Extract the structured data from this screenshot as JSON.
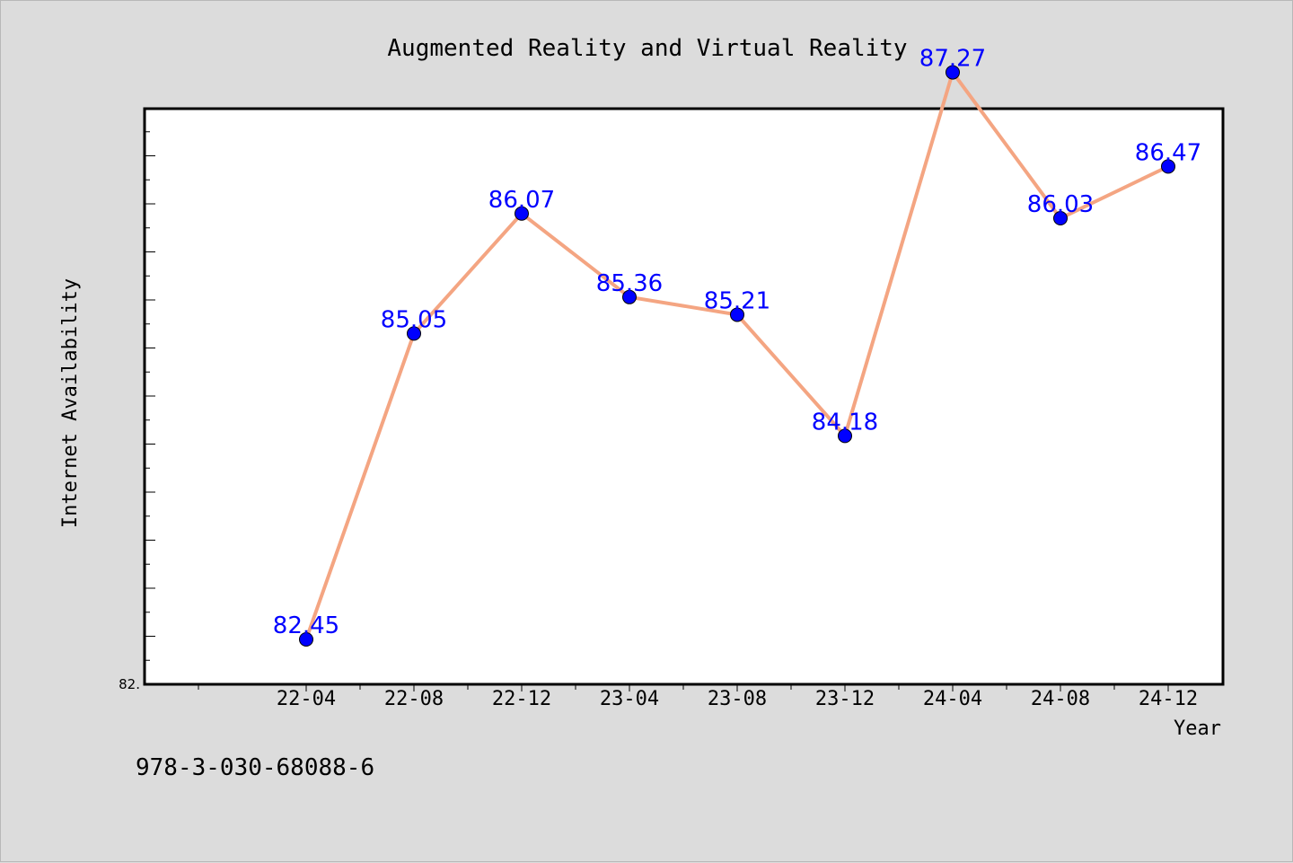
{
  "chart_data": {
    "type": "line",
    "title": "Augmented Reality and Virtual Reality",
    "xlabel": "Year",
    "ylabel": "Internet Availability",
    "categories": [
      "22-04",
      "22-08",
      "22-12",
      "23-04",
      "23-08",
      "23-12",
      "24-04",
      "24-08",
      "24-12"
    ],
    "series": [
      {
        "values": [
          82.45,
          85.05,
          86.07,
          85.36,
          85.21,
          84.18,
          87.27,
          86.03,
          86.47
        ],
        "labels": [
          "82.45",
          "85.05",
          "86.07",
          "85.36",
          "85.21",
          "84.18",
          "87.27",
          "86.03",
          "86.47"
        ],
        "line_color": "#f4a582",
        "marker_color": "#0000ff"
      }
    ],
    "y_tick_label": "82.",
    "ylim": [
      82.0,
      88.0
    ],
    "grid": false,
    "legend": "none"
  },
  "footer": {
    "isbn": "978-3-030-68088-6"
  },
  "colors": {
    "background": "#dcdcdc",
    "plot_area": "#ffffff",
    "data_label": "#0000ff"
  }
}
